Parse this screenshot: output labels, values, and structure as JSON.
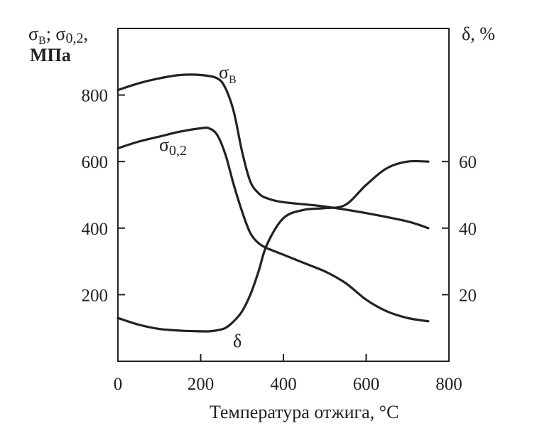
{
  "chart_data": {
    "type": "line",
    "xlabel": "Температура отжига, °С",
    "ylabel_left_line1": "σ",
    "ylabel_left_sub1": "В",
    "ylabel_left_sep": "; σ",
    "ylabel_left_sub2": "0,2",
    "ylabel_left_tail": ",",
    "ylabel_left_line2": "МПа",
    "ylabel_right": "δ, %",
    "xlim": [
      0,
      800
    ],
    "ylim_left": [
      0,
      1000
    ],
    "ylim_right": [
      0,
      100
    ],
    "x_ticks": [
      "0",
      "200",
      "400",
      "600",
      "800"
    ],
    "y_left_ticks": [
      "200",
      "400",
      "600",
      "800"
    ],
    "y_right_ticks": [
      "20",
      "40",
      "60"
    ],
    "series": [
      {
        "name": "σ",
        "name_sub": "В",
        "axis": "left",
        "x": [
          0,
          50,
          100,
          150,
          200,
          240,
          260,
          280,
          300,
          320,
          340,
          360,
          400,
          500,
          600,
          700,
          750
        ],
        "y": [
          815,
          835,
          850,
          860,
          860,
          850,
          820,
          750,
          630,
          540,
          505,
          490,
          478,
          465,
          445,
          420,
          400
        ]
      },
      {
        "name": "σ",
        "name_sub": "0,2",
        "axis": "left",
        "x": [
          0,
          50,
          100,
          150,
          200,
          220,
          240,
          260,
          280,
          300,
          320,
          340,
          360,
          400,
          450,
          500,
          550,
          600,
          650,
          700,
          750
        ],
        "y": [
          640,
          660,
          675,
          690,
          700,
          700,
          680,
          620,
          530,
          450,
          385,
          355,
          340,
          320,
          295,
          270,
          235,
          185,
          150,
          130,
          120
        ]
      },
      {
        "name": "δ",
        "axis": "right",
        "x": [
          0,
          50,
          100,
          150,
          200,
          220,
          240,
          260,
          280,
          300,
          320,
          340,
          360,
          400,
          450,
          500,
          550,
          600,
          650,
          700,
          750
        ],
        "y": [
          13,
          11,
          9.7,
          9.2,
          9.0,
          9.0,
          9.3,
          10,
          12,
          15,
          20,
          27,
          35,
          43,
          45.5,
          46,
          47,
          53,
          58,
          60,
          60
        ]
      }
    ]
  }
}
